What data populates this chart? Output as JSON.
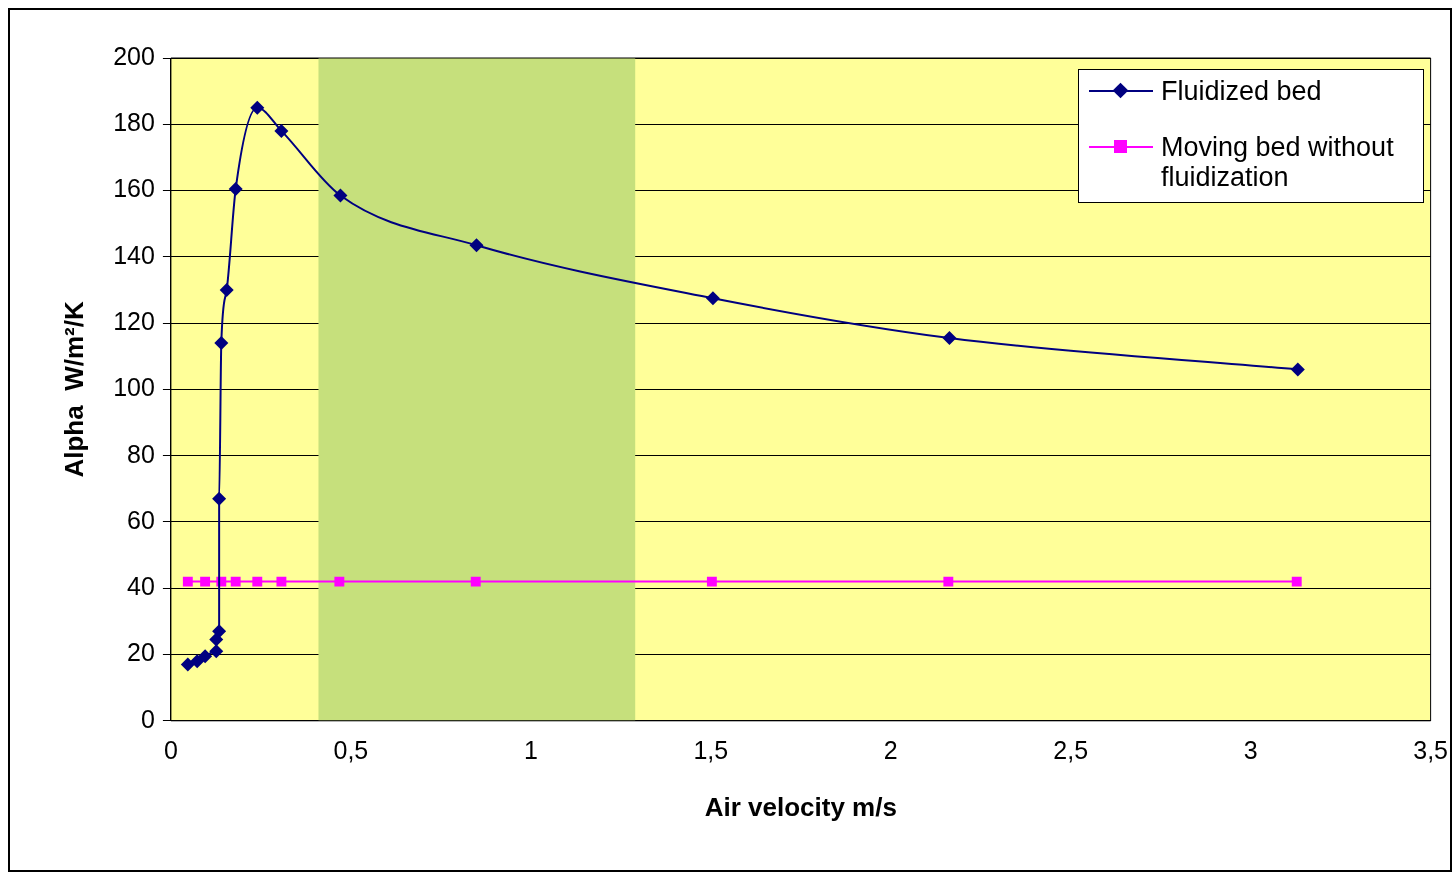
{
  "chart_data": {
    "type": "line",
    "xlabel": "Air velocity m/s",
    "ylabel": "Alpha  W/m²/K",
    "xlim": [
      0,
      3.5
    ],
    "xticks": [
      {
        "value": 0,
        "label": "0"
      },
      {
        "value": 0.5,
        "label": "0,5"
      },
      {
        "value": 1,
        "label": "1"
      },
      {
        "value": 1.5,
        "label": "1,5"
      },
      {
        "value": 2,
        "label": "2"
      },
      {
        "value": 2.5,
        "label": "2,5"
      },
      {
        "value": 3,
        "label": "3"
      },
      {
        "value": 3.5,
        "label": "3,5"
      }
    ],
    "ylim": [
      0,
      200
    ],
    "yticks": [
      0,
      20,
      40,
      60,
      80,
      100,
      120,
      140,
      160,
      180,
      200
    ],
    "grid": "y",
    "legend": "top right",
    "bands": [
      {
        "axis": "x",
        "from": 0.41,
        "to": 1.29,
        "color": "#c6e07c"
      }
    ],
    "series": [
      {
        "name": "Fluidized bed",
        "color": "#000080",
        "marker": "diamond",
        "x": [
          0.047,
          0.073,
          0.095,
          0.126,
          0.126,
          0.134,
          0.134,
          0.14,
          0.155,
          0.18,
          0.24,
          0.307,
          0.471,
          0.849,
          1.506,
          2.163,
          3.131
        ],
        "values": [
          17,
          18,
          19.5,
          21,
          24.5,
          27,
          67,
          114,
          130,
          160.5,
          185,
          178,
          158.5,
          143.5,
          127.5,
          115.5,
          106
        ]
      },
      {
        "name": "Moving bed without fluidization",
        "color": "#ff00ff",
        "marker": "square",
        "x": [
          0.047,
          0.095,
          0.14,
          0.18,
          0.24,
          0.307,
          0.468,
          0.847,
          1.503,
          2.16,
          3.128
        ],
        "values": [
          42,
          42,
          42,
          42,
          42,
          42,
          42,
          42,
          42,
          42,
          42
        ]
      }
    ]
  }
}
